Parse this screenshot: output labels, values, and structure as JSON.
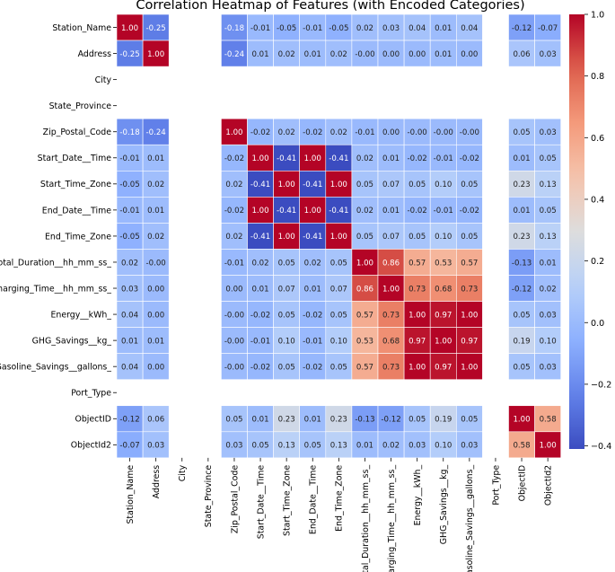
{
  "chart_data": {
    "type": "heatmap",
    "title": "Correlation Heatmap of Features (with Encoded Categories)",
    "xlabel": "",
    "ylabel": "",
    "labels": [
      "Station_Name",
      "Address",
      "City",
      "State_Province",
      "Zip_Postal_Code",
      "Start_Date__Time",
      "Start_Time_Zone",
      "End_Date__Time",
      "End_Time_Zone",
      "Total_Duration__hh_mm_ss_",
      "Charging_Time__hh_mm_ss_",
      "Energy__kWh_",
      "GHG_Savings__kg_",
      "Gasoline_Savings__gallons_",
      "Port_Type",
      "ObjectID",
      "ObjectId2"
    ],
    "matrix": [
      [
        1.0,
        -0.25,
        null,
        null,
        -0.18,
        -0.01,
        -0.05,
        -0.01,
        -0.05,
        0.02,
        0.03,
        0.04,
        0.01,
        0.04,
        null,
        -0.12,
        -0.07
      ],
      [
        -0.25,
        1.0,
        null,
        null,
        -0.24,
        0.01,
        0.02,
        0.01,
        0.02,
        -0.0,
        0.0,
        0.0,
        0.01,
        0.0,
        null,
        0.06,
        0.03
      ],
      [
        null,
        null,
        null,
        null,
        null,
        null,
        null,
        null,
        null,
        null,
        null,
        null,
        null,
        null,
        null,
        null,
        null
      ],
      [
        null,
        null,
        null,
        null,
        null,
        null,
        null,
        null,
        null,
        null,
        null,
        null,
        null,
        null,
        null,
        null,
        null
      ],
      [
        -0.18,
        -0.24,
        null,
        null,
        1.0,
        -0.02,
        0.02,
        -0.02,
        0.02,
        -0.01,
        0.0,
        -0.0,
        -0.0,
        -0.0,
        null,
        0.05,
        0.03
      ],
      [
        -0.01,
        0.01,
        null,
        null,
        -0.02,
        1.0,
        -0.41,
        1.0,
        -0.41,
        0.02,
        0.01,
        -0.02,
        -0.01,
        -0.02,
        null,
        0.01,
        0.05
      ],
      [
        -0.05,
        0.02,
        null,
        null,
        0.02,
        -0.41,
        1.0,
        -0.41,
        1.0,
        0.05,
        0.07,
        0.05,
        0.1,
        0.05,
        null,
        0.23,
        0.13
      ],
      [
        -0.01,
        0.01,
        null,
        null,
        -0.02,
        1.0,
        -0.41,
        1.0,
        -0.41,
        0.02,
        0.01,
        -0.02,
        -0.01,
        -0.02,
        null,
        0.01,
        0.05
      ],
      [
        -0.05,
        0.02,
        null,
        null,
        0.02,
        -0.41,
        1.0,
        -0.41,
        1.0,
        0.05,
        0.07,
        0.05,
        0.1,
        0.05,
        null,
        0.23,
        0.13
      ],
      [
        0.02,
        -0.0,
        null,
        null,
        -0.01,
        0.02,
        0.05,
        0.02,
        0.05,
        1.0,
        0.86,
        0.57,
        0.53,
        0.57,
        null,
        -0.13,
        0.01
      ],
      [
        0.03,
        0.0,
        null,
        null,
        0.0,
        0.01,
        0.07,
        0.01,
        0.07,
        0.86,
        1.0,
        0.73,
        0.68,
        0.73,
        null,
        -0.12,
        0.02
      ],
      [
        0.04,
        0.0,
        null,
        null,
        -0.0,
        -0.02,
        0.05,
        -0.02,
        0.05,
        0.57,
        0.73,
        1.0,
        0.97,
        1.0,
        null,
        0.05,
        0.03
      ],
      [
        0.01,
        0.01,
        null,
        null,
        -0.0,
        -0.01,
        0.1,
        -0.01,
        0.1,
        0.53,
        0.68,
        0.97,
        1.0,
        0.97,
        null,
        0.19,
        0.1
      ],
      [
        0.04,
        0.0,
        null,
        null,
        -0.0,
        -0.02,
        0.05,
        -0.02,
        0.05,
        0.57,
        0.73,
        1.0,
        0.97,
        1.0,
        null,
        0.05,
        0.03
      ],
      [
        null,
        null,
        null,
        null,
        null,
        null,
        null,
        null,
        null,
        null,
        null,
        null,
        null,
        null,
        null,
        null,
        null
      ],
      [
        -0.12,
        0.06,
        null,
        null,
        0.05,
        0.01,
        0.23,
        0.01,
        0.23,
        -0.13,
        -0.12,
        0.05,
        0.19,
        0.05,
        null,
        1.0,
        0.58
      ],
      [
        -0.07,
        0.03,
        null,
        null,
        0.03,
        0.05,
        0.13,
        0.05,
        0.13,
        0.01,
        0.02,
        0.03,
        0.1,
        0.03,
        null,
        0.58,
        1.0
      ]
    ],
    "colorbar": {
      "colormap": "coolwarm",
      "vmin": -0.41,
      "vmax": 1.0,
      "ticks": [
        1.0,
        0.8,
        0.6,
        0.4,
        0.2,
        0.0,
        -0.2,
        -0.4
      ],
      "tick_labels": [
        "1.0",
        "0.8",
        "0.6",
        "0.4",
        "0.2",
        "0.0",
        "−0.2",
        "−0.4"
      ]
    },
    "annotations": "2 decimal values in each cell",
    "grid": false,
    "legend": "colorbar right"
  }
}
